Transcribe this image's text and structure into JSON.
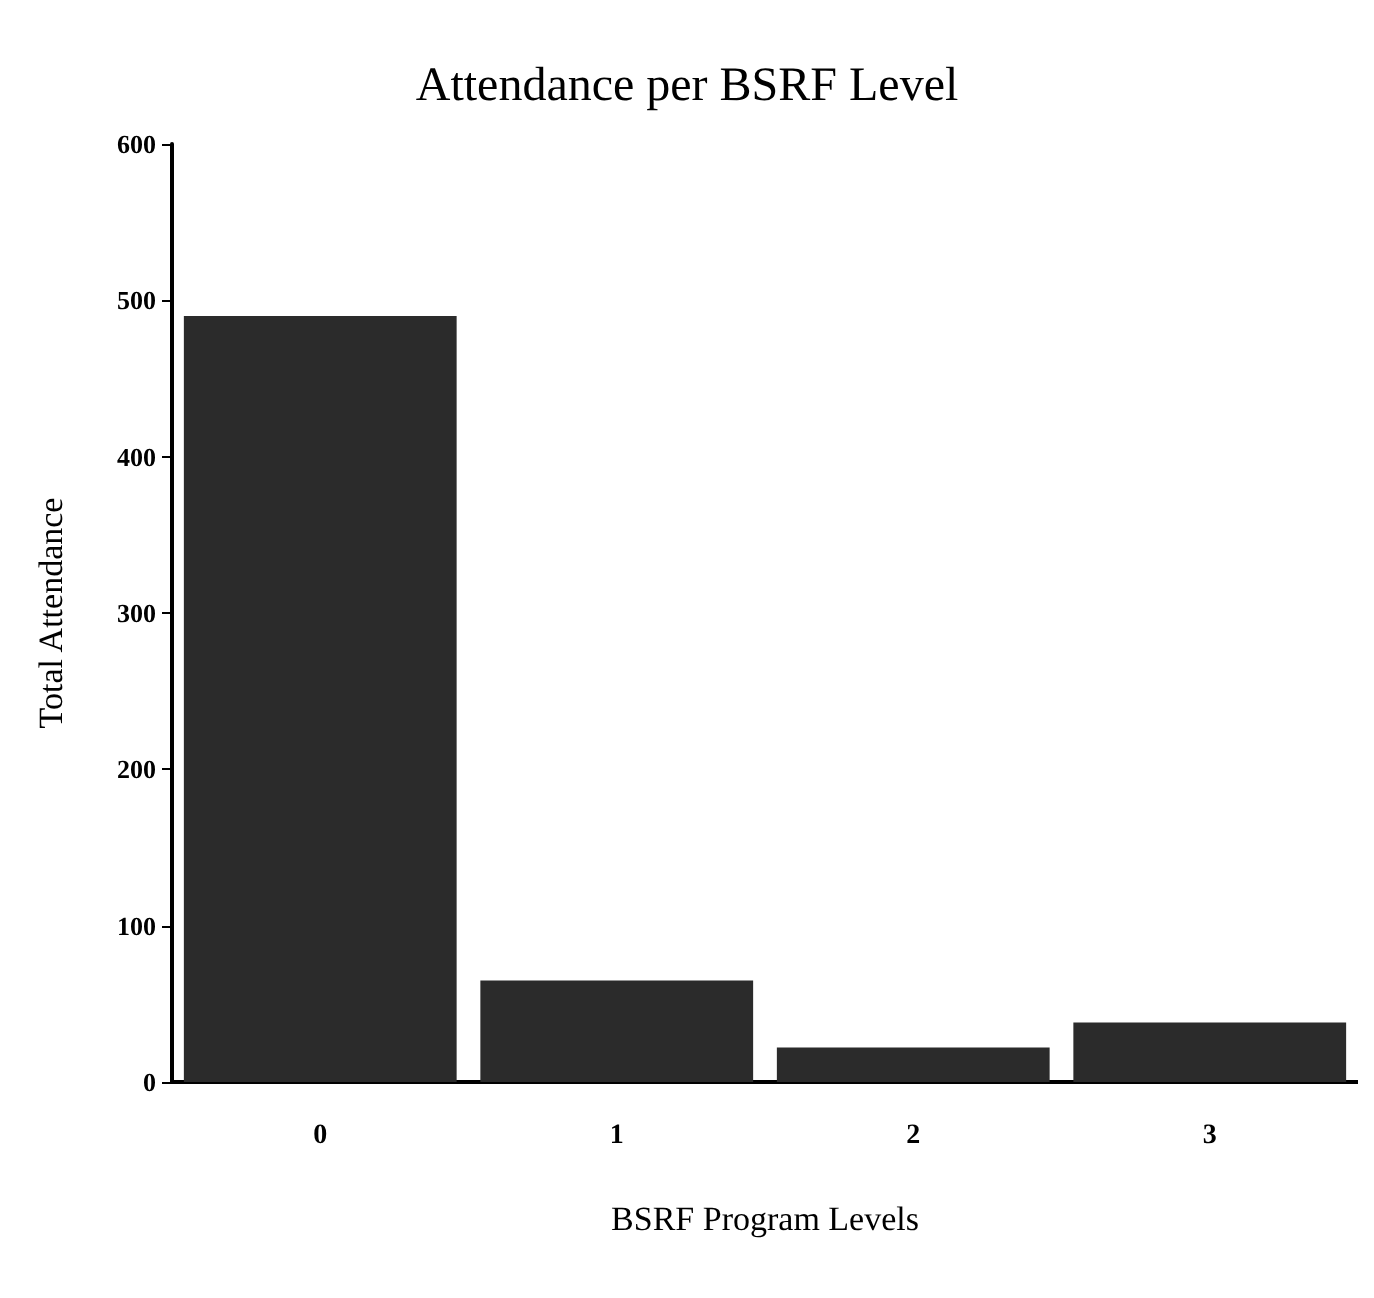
{
  "chart_data": {
    "type": "bar",
    "title": "Attendance per BSRF Level",
    "xlabel": "BSRF Program Levels",
    "ylabel": "Total Attendance",
    "categories": [
      "0",
      "1",
      "2",
      "3"
    ],
    "values": [
      490,
      65,
      22,
      38
    ],
    "color": "#2b2b2b",
    "ylim": [
      0,
      600
    ],
    "yticks": [
      0,
      100,
      200,
      300,
      400,
      500,
      600
    ],
    "grid": false
  }
}
